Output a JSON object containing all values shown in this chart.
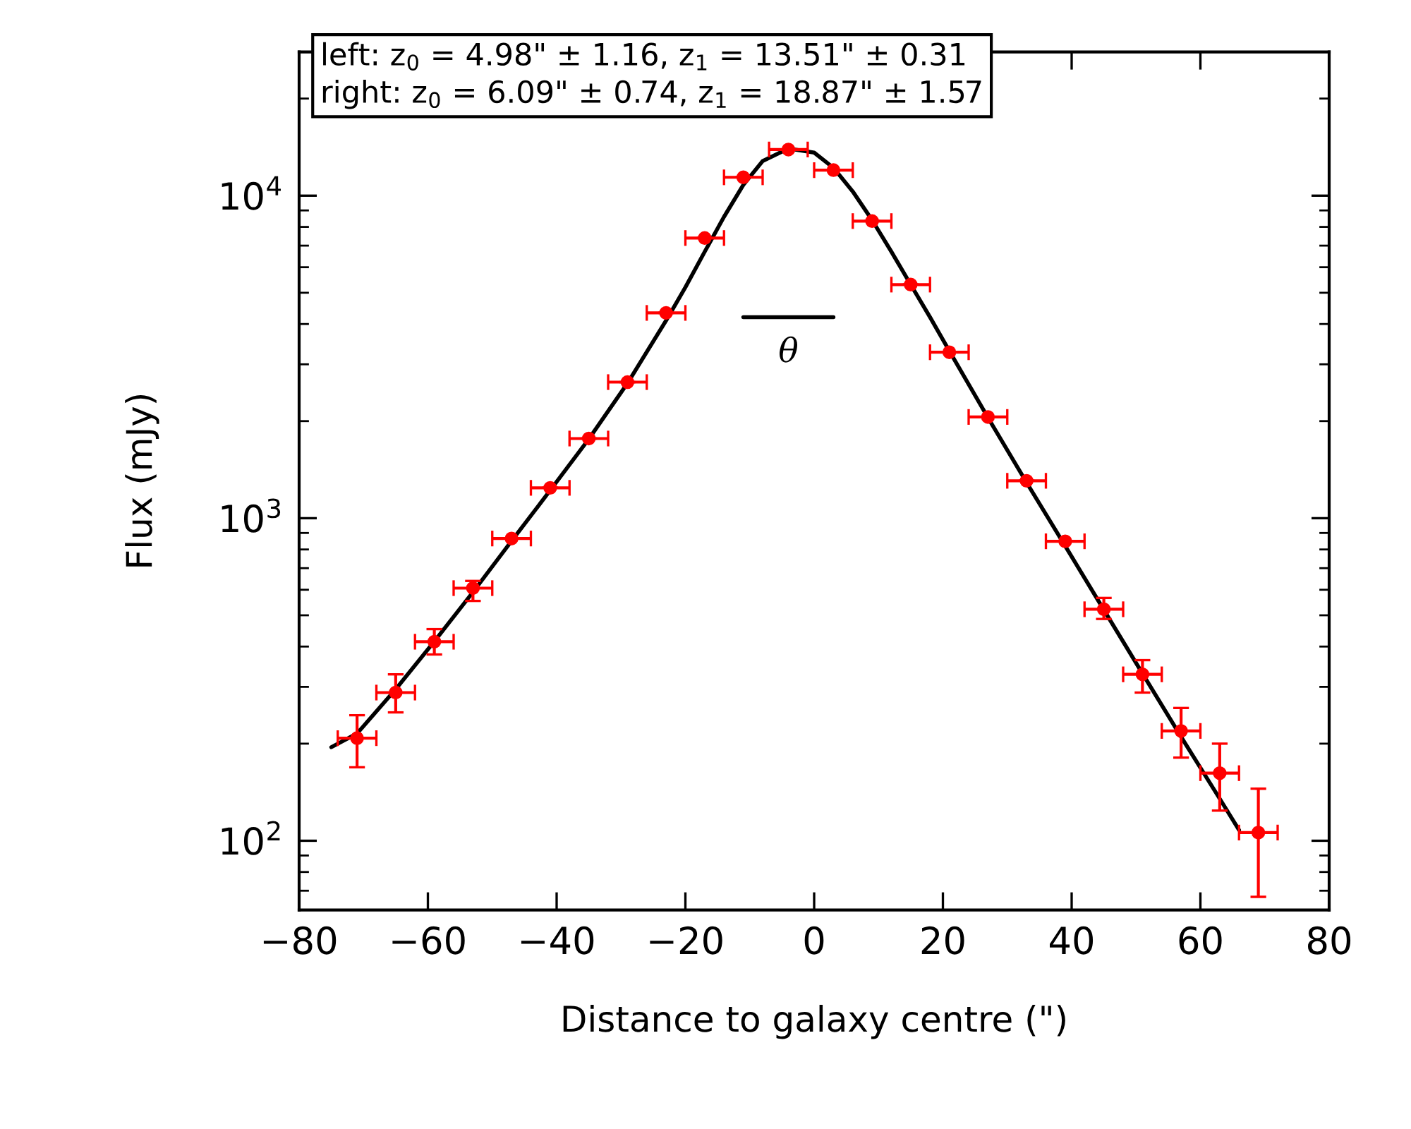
{
  "chart_data": {
    "type": "scatter",
    "xlabel": "Distance to galaxy centre (\")",
    "ylabel": "Flux (mJy)",
    "log": "y",
    "grid": false,
    "legend": false,
    "xlim": [
      -80,
      80
    ],
    "xticks": [
      -80,
      -60,
      -40,
      -20,
      0,
      20,
      40,
      60,
      80
    ],
    "ylim": [
      61,
      27900
    ],
    "yticks": [
      {
        "value": 100,
        "label": "10$^{2}$"
      },
      {
        "value": 1000,
        "label": "10$^{3}$"
      },
      {
        "value": 10000,
        "label": "10$^{4}$"
      }
    ],
    "series": [
      {
        "type": "line",
        "color": "#000000",
        "marker": "none",
        "line_style": "solid",
        "x": [
          -75,
          -71,
          -65,
          -59,
          -53,
          -47,
          -41,
          -35,
          -29,
          -23,
          -20,
          -17,
          -14,
          -11,
          -8,
          -4,
          0,
          3,
          6,
          9,
          12,
          15,
          18,
          21,
          24,
          27,
          33,
          39,
          45,
          51,
          57,
          63,
          66
        ],
        "values": [
          195,
          215,
          295,
          415,
          590,
          850,
          1220,
          1760,
          2620,
          4100,
          5200,
          6700,
          8600,
          10800,
          12800,
          14000,
          13600,
          12200,
          10300,
          8400,
          6700,
          5300,
          4200,
          3300,
          2600,
          2050,
          1290,
          820,
          520,
          330,
          210,
          135,
          108
        ]
      },
      {
        "type": "line",
        "color": "#000000",
        "marker": "none",
        "line_style": "solid",
        "x": [
          -11,
          3
        ],
        "values": [
          4200,
          4200
        ]
      },
      {
        "color": "#ff0000",
        "marker": "circle",
        "x": [
          -71,
          -65,
          -59,
          -53,
          -47,
          -41,
          -35,
          -29,
          -23,
          -17,
          -11,
          -4,
          3,
          9,
          15,
          21,
          27,
          33,
          39,
          45,
          51,
          57,
          63,
          69
        ],
        "values": [
          208,
          288,
          414,
          607,
          865,
          1242,
          1766,
          2642,
          4330,
          7390,
          11400,
          13900,
          12000,
          8340,
          5300,
          3270,
          2060,
          1306,
          848,
          522,
          328,
          219,
          162,
          106
        ],
        "errors": [
          [
            169,
            245
          ],
          [
            250,
            328
          ],
          [
            378,
            453
          ],
          [
            554,
            639
          ],
          null,
          null,
          null,
          null,
          null,
          null,
          null,
          null,
          null,
          null,
          null,
          null,
          null,
          null,
          null,
          [
            487,
            566
          ],
          [
            288,
            363
          ],
          [
            181,
            258
          ],
          [
            124,
            200
          ],
          [
            67,
            145
          ]
        ],
        "xerrors": [
          3,
          3,
          3,
          3,
          3,
          3,
          3,
          3,
          3,
          3,
          3,
          3,
          3,
          3,
          3,
          3,
          3,
          3,
          3,
          3,
          3,
          3,
          3,
          3
        ]
      }
    ],
    "annotations": [
      "θ",
      "left: z$_{0}$ = 4.98\" ± 1.16, z$_{1}$ = 13.51\" ± 0.31",
      "right: z$_{0}$ = 6.09\" ± 0.74, z$_{1}$ = 18.87\" ± 1.57"
    ]
  }
}
